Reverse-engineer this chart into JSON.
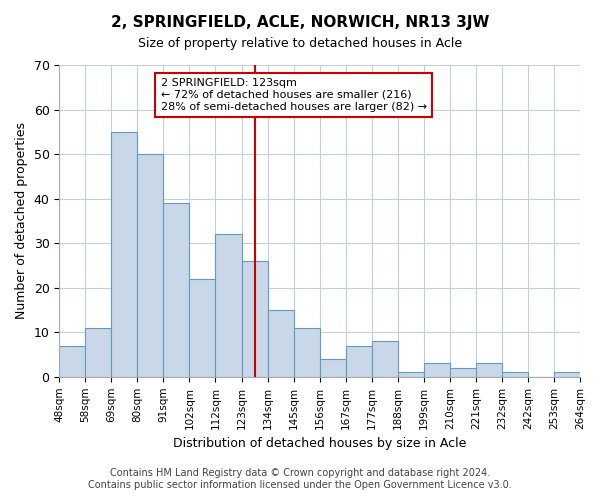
{
  "title": "2, SPRINGFIELD, ACLE, NORWICH, NR13 3JW",
  "subtitle": "Size of property relative to detached houses in Acle",
  "xlabel": "Distribution of detached houses by size in Acle",
  "ylabel": "Number of detached properties",
  "bin_labels": [
    "48sqm",
    "58sqm",
    "69sqm",
    "80sqm",
    "91sqm",
    "102sqm",
    "112sqm",
    "123sqm",
    "134sqm",
    "145sqm",
    "156sqm",
    "167sqm",
    "177sqm",
    "188sqm",
    "199sqm",
    "210sqm",
    "221sqm",
    "232sqm",
    "242sqm",
    "253sqm",
    "264sqm"
  ],
  "bar_values": [
    7,
    11,
    55,
    50,
    39,
    22,
    32,
    26,
    15,
    11,
    4,
    7,
    8,
    1,
    3,
    2,
    3,
    1,
    0,
    1
  ],
  "bar_color": "#c8d8e8",
  "bar_edge_color": "#6699bb",
  "highlight_bin_index": 7,
  "highlight_color": "#cc0000",
  "annotation_title": "2 SPRINGFIELD: 123sqm",
  "annotation_line1": "← 72% of detached houses are smaller (216)",
  "annotation_line2": "28% of semi-detached houses are larger (82) →",
  "annotation_box_color": "#ffffff",
  "annotation_box_edge": "#cc0000",
  "ylim": [
    0,
    70
  ],
  "yticks": [
    0,
    10,
    20,
    30,
    40,
    50,
    60,
    70
  ],
  "footer_line1": "Contains HM Land Registry data © Crown copyright and database right 2024.",
  "footer_line2": "Contains public sector information licensed under the Open Government Licence v3.0.",
  "background_color": "#ffffff",
  "grid_color": "#c0d0e0"
}
